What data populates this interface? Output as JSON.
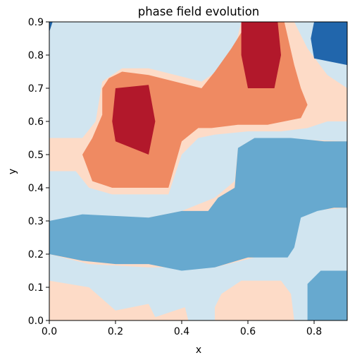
{
  "chart_data": {
    "type": "contour",
    "title": "phase field evolution",
    "xlabel": "x",
    "ylabel": "y",
    "xlim": [
      0.0,
      0.9
    ],
    "ylim": [
      0.0,
      0.9
    ],
    "xticks": [
      0.0,
      0.2,
      0.4,
      0.6,
      0.8
    ],
    "xtick_labels": [
      "0.0",
      "0.2",
      "0.4",
      "0.6",
      "0.8"
    ],
    "yticks": [
      0.0,
      0.1,
      0.2,
      0.3,
      0.4,
      0.5,
      0.6,
      0.7,
      0.8,
      0.9
    ],
    "ytick_labels": [
      "0.0",
      "0.1",
      "0.2",
      "0.3",
      "0.4",
      "0.5",
      "0.6",
      "0.7",
      "0.8",
      "0.9"
    ],
    "colormap": "RdBu_r",
    "level_colors": {
      "dark_blue": "#2166ac",
      "medium_blue": "#67a9cf",
      "light_blue": "#d1e5f0",
      "light_peach": "#fddbc7",
      "salmon": "#ef8a62",
      "dark_red": "#b2182b"
    },
    "regions": [
      {
        "level": "salmon",
        "points": [
          [
            0.1,
            0.5
          ],
          [
            0.13,
            0.42
          ],
          [
            0.19,
            0.4
          ],
          [
            0.36,
            0.4
          ],
          [
            0.4,
            0.54
          ],
          [
            0.45,
            0.58
          ],
          [
            0.49,
            0.58
          ],
          [
            0.57,
            0.59
          ],
          [
            0.66,
            0.59
          ],
          [
            0.76,
            0.61
          ],
          [
            0.78,
            0.65
          ],
          [
            0.76,
            0.7
          ],
          [
            0.74,
            0.77
          ],
          [
            0.71,
            0.9
          ],
          [
            0.6,
            0.9
          ],
          [
            0.55,
            0.82
          ],
          [
            0.5,
            0.75
          ],
          [
            0.46,
            0.7
          ],
          [
            0.3,
            0.74
          ],
          [
            0.22,
            0.75
          ],
          [
            0.18,
            0.73
          ],
          [
            0.16,
            0.7
          ],
          [
            0.16,
            0.62
          ],
          [
            0.13,
            0.55
          ]
        ]
      },
      {
        "level": "dark_red",
        "points": [
          [
            0.2,
            0.7
          ],
          [
            0.3,
            0.71
          ],
          [
            0.32,
            0.6
          ],
          [
            0.3,
            0.5
          ],
          [
            0.2,
            0.54
          ],
          [
            0.19,
            0.6
          ]
        ]
      },
      {
        "level": "dark_red",
        "points": [
          [
            0.58,
            0.9
          ],
          [
            0.69,
            0.9
          ],
          [
            0.7,
            0.8
          ],
          [
            0.68,
            0.7
          ],
          [
            0.6,
            0.7
          ],
          [
            0.58,
            0.8
          ]
        ]
      },
      {
        "level": "dark_blue",
        "points": [
          [
            0.8,
            0.9
          ],
          [
            0.9,
            0.9
          ],
          [
            0.9,
            0.77
          ],
          [
            0.8,
            0.79
          ],
          [
            0.79,
            0.85
          ]
        ]
      },
      {
        "level": "dark_blue",
        "points": [
          [
            0.0,
            0.9
          ],
          [
            0.01,
            0.9
          ],
          [
            0.0,
            0.87
          ]
        ]
      },
      {
        "level": "medium_blue",
        "points": [
          [
            0.0,
            0.3
          ],
          [
            0.1,
            0.32
          ],
          [
            0.3,
            0.31
          ],
          [
            0.4,
            0.33
          ],
          [
            0.48,
            0.33
          ],
          [
            0.51,
            0.37
          ],
          [
            0.56,
            0.4
          ],
          [
            0.57,
            0.52
          ],
          [
            0.62,
            0.55
          ],
          [
            0.73,
            0.55
          ],
          [
            0.83,
            0.54
          ],
          [
            0.9,
            0.54
          ],
          [
            0.9,
            0.34
          ],
          [
            0.86,
            0.34
          ],
          [
            0.81,
            0.33
          ],
          [
            0.76,
            0.31
          ],
          [
            0.74,
            0.22
          ],
          [
            0.72,
            0.19
          ],
          [
            0.6,
            0.19
          ],
          [
            0.5,
            0.16
          ],
          [
            0.4,
            0.15
          ],
          [
            0.3,
            0.17
          ],
          [
            0.2,
            0.17
          ],
          [
            0.1,
            0.18
          ],
          [
            0.0,
            0.2
          ]
        ]
      },
      {
        "level": "medium_blue",
        "points": [
          [
            0.78,
            0.0
          ],
          [
            0.9,
            0.0
          ],
          [
            0.9,
            0.15
          ],
          [
            0.82,
            0.15
          ],
          [
            0.78,
            0.11
          ]
        ]
      },
      {
        "level": "light_peach",
        "points": [
          [
            0.0,
            0.0
          ],
          [
            0.42,
            0.0
          ],
          [
            0.41,
            0.04
          ],
          [
            0.32,
            0.01
          ],
          [
            0.3,
            0.05
          ],
          [
            0.2,
            0.03
          ],
          [
            0.12,
            0.1
          ],
          [
            0.0,
            0.12
          ]
        ]
      },
      {
        "level": "light_peach",
        "points": [
          [
            0.5,
            0.0
          ],
          [
            0.74,
            0.0
          ],
          [
            0.73,
            0.08
          ],
          [
            0.7,
            0.12
          ],
          [
            0.63,
            0.12
          ],
          [
            0.58,
            0.12
          ],
          [
            0.52,
            0.08
          ],
          [
            0.5,
            0.04
          ]
        ]
      }
    ]
  }
}
